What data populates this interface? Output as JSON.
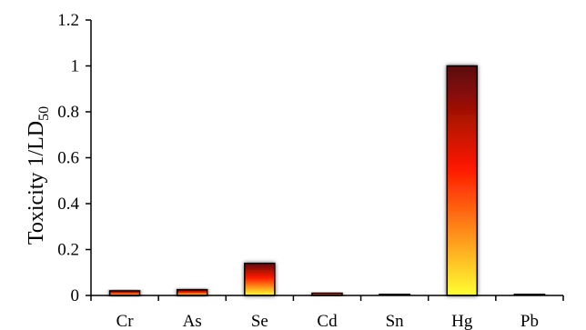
{
  "chart_data": {
    "type": "bar",
    "title": "",
    "xlabel": "",
    "ylabel": "Toxicity 1/LD",
    "ylabel_subscript": "50",
    "categories": [
      "Cr",
      "As",
      "Se",
      "Cd",
      "Sn",
      "Hg",
      "Pb"
    ],
    "values": [
      0.02,
      0.025,
      0.14,
      0.01,
      0.003,
      1.0,
      0.003
    ],
    "ylim": [
      0,
      1.2
    ],
    "yticks": [
      "0",
      "0.2",
      "0.4",
      "0.6",
      "0.8",
      "1",
      "1.2"
    ],
    "grid": false,
    "legend": "none",
    "colors": {
      "bar_gradient": [
        "#5a0a0a",
        "#ff1a00",
        "#ffff33"
      ],
      "bar_edge": "#000000",
      "axis": "#000000"
    }
  }
}
